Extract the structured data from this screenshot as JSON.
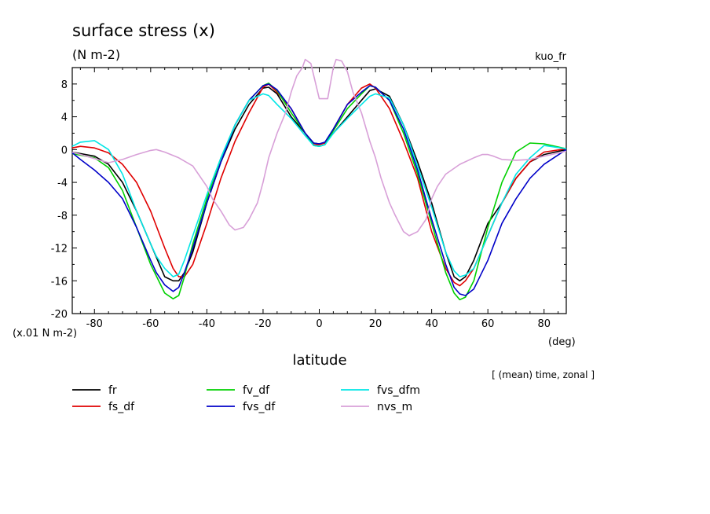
{
  "chart_data": {
    "type": "line",
    "title": "surface stress (x)",
    "units": "(N m-2)",
    "run_label": "kuo_fr",
    "scale_label": "(x.01 N m-2)",
    "xlabel": "latitude",
    "xunit": "(deg)",
    "averaging_note": "[ (mean) time, zonal ]",
    "xlim": [
      -87.9,
      87.9
    ],
    "ylim": [
      -20,
      10
    ],
    "xticks": [
      -80,
      -60,
      -40,
      -20,
      0,
      20,
      40,
      60,
      80
    ],
    "xtick_labels": [
      "-80",
      "-60",
      "-40",
      "-20",
      "0",
      "20",
      "40",
      "60",
      "80"
    ],
    "yticks": [
      -20,
      -16,
      -12,
      -8,
      -4,
      0,
      4,
      8
    ],
    "ytick_labels": [
      "-20",
      "-16",
      "-12",
      "-8",
      "-4",
      "0",
      "4",
      "8"
    ],
    "series": [
      {
        "name": "fr",
        "color": "#000000",
        "x": [
          -87.9,
          -80,
          -75,
          -70,
          -65,
          -60,
          -55,
          -52,
          -50,
          -48,
          -45,
          -40,
          -35,
          -30,
          -25,
          -20,
          -18,
          -15,
          -10,
          -5,
          -2,
          0,
          2,
          5,
          10,
          15,
          18,
          20,
          25,
          30,
          35,
          40,
          45,
          48,
          50,
          52,
          55,
          60,
          65,
          70,
          75,
          80,
          87.9
        ],
        "y": [
          -0.3,
          -0.8,
          -1.8,
          -4.0,
          -7.5,
          -11.5,
          -15.5,
          -16.0,
          -16.0,
          -15.0,
          -12.5,
          -6.5,
          -1.5,
          2.5,
          5.5,
          7.5,
          7.6,
          6.8,
          4.0,
          2.0,
          0.8,
          0.7,
          0.8,
          2.0,
          4.0,
          6.0,
          7.2,
          7.4,
          6.5,
          3.0,
          -1.5,
          -6.5,
          -12.5,
          -15.5,
          -16.0,
          -15.5,
          -13.5,
          -9.0,
          -6.5,
          -3.5,
          -1.5,
          -0.6,
          0.0
        ]
      },
      {
        "name": "fs_df",
        "color": "#e00000",
        "x": [
          -87.9,
          -85,
          -80,
          -75,
          -70,
          -65,
          -60,
          -55,
          -52,
          -50,
          -48,
          -45,
          -40,
          -35,
          -30,
          -25,
          -20,
          -18,
          -15,
          -10,
          -5,
          -2,
          0,
          2,
          5,
          10,
          15,
          18,
          20,
          25,
          30,
          35,
          40,
          45,
          48,
          50,
          52,
          55,
          60,
          65,
          70,
          75,
          80,
          87.9
        ],
        "y": [
          0.2,
          0.4,
          0.2,
          -0.4,
          -1.8,
          -4.0,
          -7.5,
          -12.0,
          -14.5,
          -15.5,
          -15.5,
          -14.0,
          -9.0,
          -3.5,
          1.0,
          4.5,
          7.6,
          8.0,
          7.0,
          5.0,
          2.0,
          0.6,
          0.6,
          0.8,
          2.5,
          5.5,
          7.5,
          8.0,
          7.5,
          5.0,
          1.0,
          -3.5,
          -10.0,
          -14.5,
          -16.2,
          -16.6,
          -16.0,
          -14.5,
          -10.5,
          -6.5,
          -3.5,
          -1.5,
          -0.3,
          0.1
        ]
      },
      {
        "name": "fv_df",
        "color": "#00d000",
        "x": [
          -87.9,
          -80,
          -75,
          -70,
          -65,
          -60,
          -55,
          -52,
          -50,
          -48,
          -45,
          -40,
          -35,
          -30,
          -25,
          -20,
          -18,
          -15,
          -10,
          -5,
          -2,
          0,
          2,
          5,
          10,
          15,
          18,
          20,
          25,
          30,
          35,
          40,
          45,
          48,
          50,
          52,
          55,
          60,
          65,
          70,
          75,
          80,
          87.9
        ],
        "y": [
          -0.5,
          -1.0,
          -2.2,
          -5.0,
          -9.5,
          -14.0,
          -17.5,
          -18.2,
          -17.8,
          -15.5,
          -11.5,
          -6.0,
          -1.0,
          3.0,
          6.0,
          7.8,
          8.1,
          7.2,
          4.5,
          2.0,
          0.5,
          0.4,
          0.6,
          2.3,
          5.0,
          6.8,
          7.8,
          7.6,
          6.0,
          2.0,
          -3.0,
          -9.0,
          -15.0,
          -17.5,
          -18.3,
          -18.0,
          -16.0,
          -9.5,
          -4.0,
          -0.3,
          0.8,
          0.7,
          0.1
        ]
      },
      {
        "name": "fvs_df",
        "color": "#0000c8",
        "x": [
          -87.9,
          -85,
          -80,
          -75,
          -70,
          -65,
          -60,
          -58,
          -55,
          -52,
          -50,
          -48,
          -45,
          -40,
          -35,
          -30,
          -25,
          -20,
          -18,
          -15,
          -10,
          -5,
          -2,
          0,
          2,
          5,
          10,
          15,
          18,
          20,
          25,
          30,
          35,
          40,
          45,
          48,
          50,
          52,
          55,
          60,
          65,
          70,
          75,
          80,
          87.9
        ],
        "y": [
          -0.4,
          -1.2,
          -2.5,
          -4.0,
          -6.0,
          -9.5,
          -13.5,
          -15.0,
          -16.5,
          -17.3,
          -16.8,
          -15.0,
          -12.0,
          -6.5,
          -1.5,
          3.0,
          6.0,
          7.8,
          8.0,
          7.3,
          5.0,
          2.0,
          0.8,
          0.7,
          0.9,
          2.5,
          5.5,
          7.0,
          7.8,
          7.6,
          6.0,
          2.5,
          -2.5,
          -8.5,
          -14.0,
          -16.8,
          -17.6,
          -17.8,
          -17.0,
          -13.5,
          -9.0,
          -6.0,
          -3.5,
          -1.8,
          0.0
        ]
      },
      {
        "name": "fvs_dfm",
        "color": "#00e6e6",
        "x": [
          -87.9,
          -85,
          -80,
          -75,
          -70,
          -65,
          -60,
          -58,
          -55,
          -52,
          -50,
          -48,
          -45,
          -40,
          -35,
          -30,
          -25,
          -20,
          -18,
          -15,
          -10,
          -5,
          -2,
          0,
          2,
          5,
          10,
          15,
          18,
          20,
          25,
          30,
          35,
          40,
          45,
          48,
          50,
          52,
          55,
          60,
          65,
          70,
          75,
          80,
          87.9
        ],
        "y": [
          0.4,
          0.9,
          1.1,
          0.0,
          -3.0,
          -7.5,
          -11.5,
          -13.0,
          -14.5,
          -15.5,
          -15.2,
          -13.5,
          -10.5,
          -5.5,
          -1.0,
          3.0,
          6.0,
          6.8,
          6.6,
          5.5,
          3.8,
          1.7,
          0.5,
          0.4,
          0.6,
          2.0,
          3.8,
          5.5,
          6.5,
          6.8,
          6.3,
          3.0,
          -2.0,
          -7.0,
          -12.5,
          -14.8,
          -15.5,
          -15.3,
          -14.5,
          -10.5,
          -6.5,
          -3.0,
          -1.0,
          0.5,
          0.1
        ]
      },
      {
        "name": "nvs_m",
        "color": "#d8a0d8",
        "x": [
          -87.9,
          -80,
          -75,
          -70,
          -65,
          -60,
          -58,
          -55,
          -50,
          -45,
          -42,
          -40,
          -38,
          -35,
          -32,
          -30,
          -27,
          -25,
          -22,
          -20,
          -18,
          -15,
          -12,
          -10,
          -8,
          -6,
          -5,
          -3,
          0,
          3,
          5,
          6,
          8,
          10,
          12,
          15,
          18,
          20,
          22,
          25,
          27,
          30,
          32,
          35,
          38,
          40,
          42,
          45,
          50,
          55,
          58,
          60,
          62,
          65,
          70,
          75,
          80,
          87.9
        ],
        "y": [
          -0.3,
          -1.1,
          -1.6,
          -1.2,
          -0.6,
          -0.1,
          0.0,
          -0.3,
          -1.0,
          -2.0,
          -3.5,
          -4.5,
          -6.0,
          -7.5,
          -9.2,
          -9.8,
          -9.5,
          -8.5,
          -6.5,
          -4.0,
          -1.0,
          2.0,
          4.5,
          7.0,
          9.0,
          10.0,
          11.0,
          10.5,
          6.2,
          6.2,
          10.0,
          11.0,
          10.8,
          9.5,
          7.0,
          4.5,
          1.0,
          -1.0,
          -3.5,
          -6.5,
          -8.0,
          -10.0,
          -10.5,
          -10.0,
          -8.5,
          -6.0,
          -4.5,
          -3.0,
          -1.8,
          -1.0,
          -0.6,
          -0.6,
          -0.8,
          -1.2,
          -1.3,
          -1.2,
          -0.8,
          -0.2
        ]
      }
    ]
  }
}
